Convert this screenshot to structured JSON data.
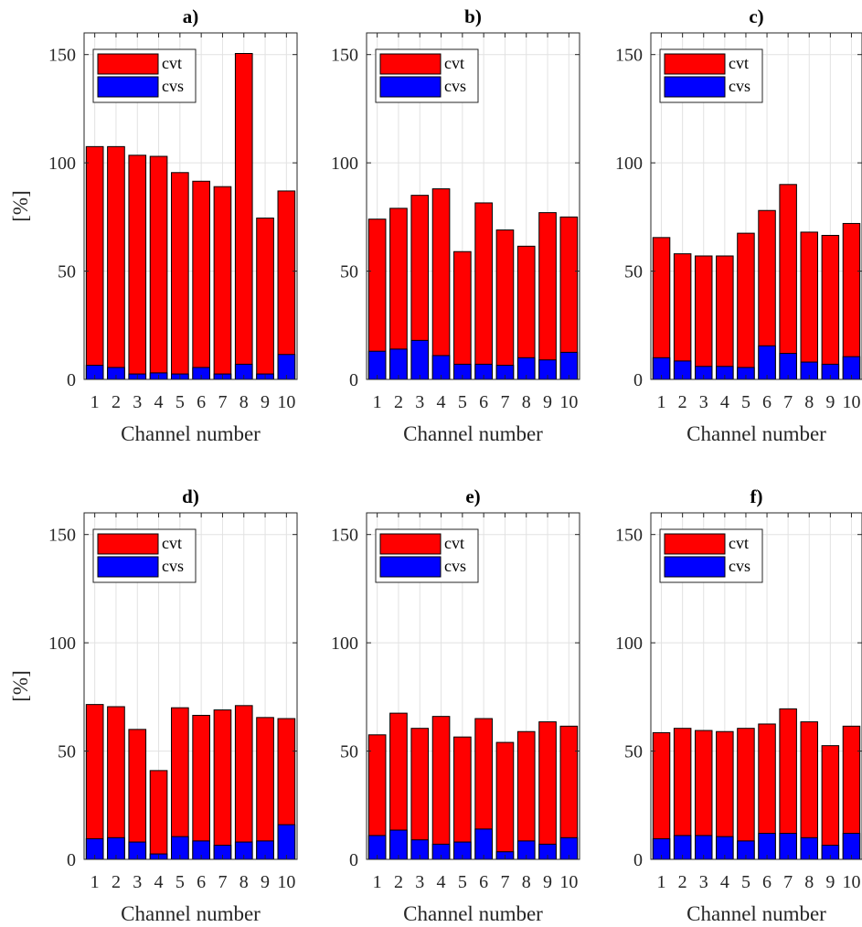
{
  "figure": {
    "xlabel": "Channel number",
    "ylabel": "[%]",
    "legend_position": "top-left"
  },
  "chart_data": [
    {
      "type": "bar",
      "title": "a)",
      "categories": [
        "1",
        "2",
        "3",
        "4",
        "5",
        "6",
        "7",
        "8",
        "9",
        "10"
      ],
      "series": [
        {
          "name": "cvt",
          "color": "#ff0000",
          "values": [
            107.5,
            107.5,
            103.5,
            103.0,
            95.5,
            91.5,
            89.0,
            150.5,
            74.5,
            87.0
          ]
        },
        {
          "name": "cvs",
          "color": "#0000ff",
          "values": [
            6.5,
            5.5,
            2.5,
            3.0,
            2.5,
            5.5,
            2.5,
            7.0,
            2.5,
            11.5
          ]
        }
      ],
      "xlabel": "Channel number",
      "ylabel": "[%]",
      "ylim": [
        0,
        160
      ],
      "yticks": [
        0,
        50,
        100,
        150
      ],
      "grid": true,
      "legend": "top-left"
    },
    {
      "type": "bar",
      "title": "b)",
      "categories": [
        "1",
        "2",
        "3",
        "4",
        "5",
        "6",
        "7",
        "8",
        "9",
        "10"
      ],
      "series": [
        {
          "name": "cvt",
          "color": "#ff0000",
          "values": [
            74.0,
            79.0,
            85.0,
            88.0,
            59.0,
            81.5,
            69.0,
            61.5,
            77.0,
            75.0
          ]
        },
        {
          "name": "cvs",
          "color": "#0000ff",
          "values": [
            13.0,
            14.0,
            18.0,
            11.0,
            7.0,
            7.0,
            6.5,
            10.0,
            9.0,
            12.5
          ]
        }
      ],
      "xlabel": "Channel number",
      "ylabel": "",
      "ylim": [
        0,
        160
      ],
      "yticks": [
        0,
        50,
        100,
        150
      ],
      "grid": true,
      "legend": "top-left"
    },
    {
      "type": "bar",
      "title": "c)",
      "categories": [
        "1",
        "2",
        "3",
        "4",
        "5",
        "6",
        "7",
        "8",
        "9",
        "10"
      ],
      "series": [
        {
          "name": "cvt",
          "color": "#ff0000",
          "values": [
            65.5,
            58.0,
            57.0,
            57.0,
            67.5,
            78.0,
            90.0,
            68.0,
            66.5,
            72.0
          ]
        },
        {
          "name": "cvs",
          "color": "#0000ff",
          "values": [
            10.0,
            8.5,
            6.0,
            6.0,
            5.5,
            15.5,
            12.0,
            8.0,
            7.0,
            10.5
          ]
        }
      ],
      "xlabel": "Channel number",
      "ylabel": "",
      "ylim": [
        0,
        160
      ],
      "yticks": [
        0,
        50,
        100,
        150
      ],
      "grid": true,
      "legend": "top-left"
    },
    {
      "type": "bar",
      "title": "d)",
      "categories": [
        "1",
        "2",
        "3",
        "4",
        "5",
        "6",
        "7",
        "8",
        "9",
        "10"
      ],
      "series": [
        {
          "name": "cvt",
          "color": "#ff0000",
          "values": [
            71.5,
            70.5,
            60.0,
            41.0,
            70.0,
            66.5,
            69.0,
            71.0,
            65.5,
            65.0
          ]
        },
        {
          "name": "cvs",
          "color": "#0000ff",
          "values": [
            9.5,
            10.0,
            8.0,
            2.5,
            10.5,
            8.5,
            6.5,
            8.0,
            8.5,
            16.0
          ]
        }
      ],
      "xlabel": "Channel number",
      "ylabel": "[%]",
      "ylim": [
        0,
        160
      ],
      "yticks": [
        0,
        50,
        100,
        150
      ],
      "grid": true,
      "legend": "top-left"
    },
    {
      "type": "bar",
      "title": "e)",
      "categories": [
        "1",
        "2",
        "3",
        "4",
        "5",
        "6",
        "7",
        "8",
        "9",
        "10"
      ],
      "series": [
        {
          "name": "cvt",
          "color": "#ff0000",
          "values": [
            57.5,
            67.5,
            60.5,
            66.0,
            56.5,
            65.0,
            54.0,
            59.0,
            63.5,
            61.5
          ]
        },
        {
          "name": "cvs",
          "color": "#0000ff",
          "values": [
            11.0,
            13.5,
            9.0,
            7.0,
            8.0,
            14.0,
            3.5,
            8.5,
            7.0,
            10.0
          ]
        }
      ],
      "xlabel": "Channel number",
      "ylabel": "",
      "ylim": [
        0,
        160
      ],
      "yticks": [
        0,
        50,
        100,
        150
      ],
      "grid": true,
      "legend": "top-left"
    },
    {
      "type": "bar",
      "title": "f)",
      "categories": [
        "1",
        "2",
        "3",
        "4",
        "5",
        "6",
        "7",
        "8",
        "9",
        "10"
      ],
      "series": [
        {
          "name": "cvt",
          "color": "#ff0000",
          "values": [
            58.5,
            60.5,
            59.5,
            59.0,
            60.5,
            62.5,
            69.5,
            63.5,
            52.5,
            61.5
          ]
        },
        {
          "name": "cvs",
          "color": "#0000ff",
          "values": [
            9.5,
            11.0,
            11.0,
            10.5,
            8.5,
            12.0,
            12.0,
            10.0,
            6.5,
            12.0
          ]
        }
      ],
      "xlabel": "Channel number",
      "ylabel": "",
      "ylim": [
        0,
        160
      ],
      "yticks": [
        0,
        50,
        100,
        150
      ],
      "grid": true,
      "legend": "top-left"
    }
  ]
}
